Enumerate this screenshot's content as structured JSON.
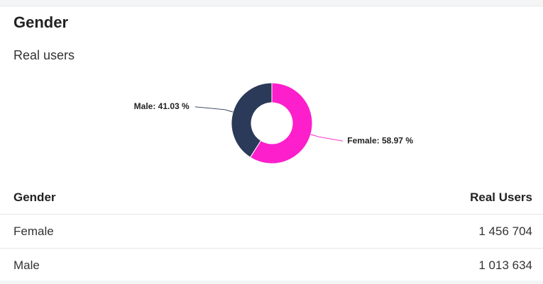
{
  "header": {
    "title": "Gender",
    "subtitle": "Real users"
  },
  "chart_data": {
    "type": "donut",
    "categories": [
      "Female",
      "Male"
    ],
    "values": [
      58.97,
      41.03
    ],
    "value_labels": [
      "Female: 58.97 %",
      "Male: 41.03 %"
    ],
    "colors": [
      "#fc1fcb",
      "#2b3a58"
    ]
  },
  "table": {
    "columns": [
      "Gender",
      "Real Users"
    ],
    "rows": [
      [
        "Female",
        "1 456 704"
      ],
      [
        "Male",
        "1 013 634"
      ]
    ]
  }
}
